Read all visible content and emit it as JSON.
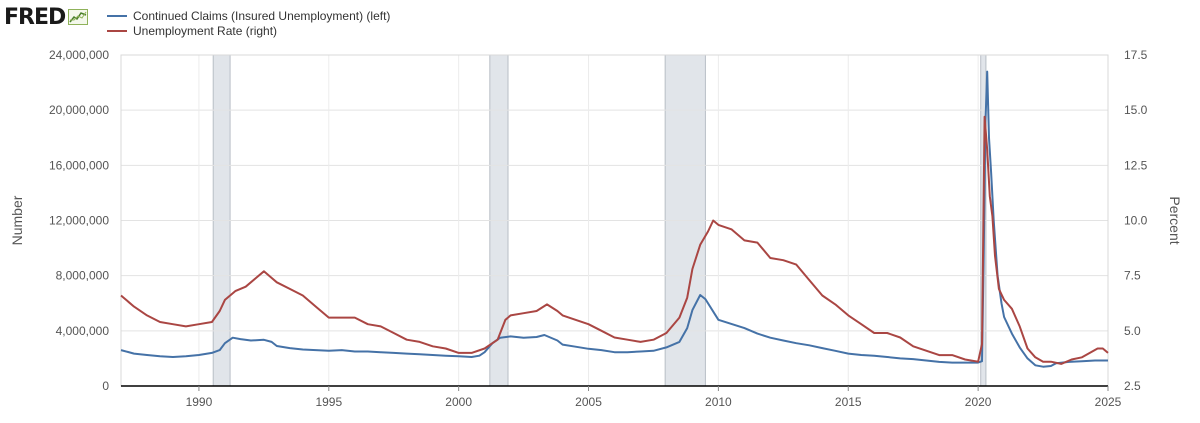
{
  "branding": {
    "logo_text": "FRED"
  },
  "chart_data": {
    "type": "line",
    "title": "",
    "xlabel": "",
    "y_left_label": "Number",
    "y_right_label": "Percent",
    "x_range": [
      1987.0,
      2025.0
    ],
    "y_left_range": [
      0,
      24000000
    ],
    "y_right_range": [
      2.5,
      17.5
    ],
    "x_ticks": [
      {
        "value": 1990,
        "label": "1990"
      },
      {
        "value": 1995,
        "label": "1995"
      },
      {
        "value": 2000,
        "label": "2000"
      },
      {
        "value": 2005,
        "label": "2005"
      },
      {
        "value": 2010,
        "label": "2010"
      },
      {
        "value": 2015,
        "label": "2015"
      },
      {
        "value": 2020,
        "label": "2020"
      },
      {
        "value": 2025,
        "label": "2025"
      }
    ],
    "y_left_ticks": [
      {
        "value": 0,
        "label": "0"
      },
      {
        "value": 4000000,
        "label": "4,000,000"
      },
      {
        "value": 8000000,
        "label": "8,000,000"
      },
      {
        "value": 12000000,
        "label": "12,000,000"
      },
      {
        "value": 16000000,
        "label": "16,000,000"
      },
      {
        "value": 20000000,
        "label": "20,000,000"
      },
      {
        "value": 24000000,
        "label": "24,000,000"
      }
    ],
    "y_right_ticks": [
      {
        "value": 2.5,
        "label": "2.5"
      },
      {
        "value": 5.0,
        "label": "5.0"
      },
      {
        "value": 7.5,
        "label": "7.5"
      },
      {
        "value": 10.0,
        "label": "10.0"
      },
      {
        "value": 12.5,
        "label": "12.5"
      },
      {
        "value": 15.0,
        "label": "15.0"
      },
      {
        "value": 17.5,
        "label": "17.5"
      }
    ],
    "recessions": [
      {
        "start": 1990.55,
        "end": 1991.2
      },
      {
        "start": 2001.2,
        "end": 2001.9
      },
      {
        "start": 2007.95,
        "end": 2009.5
      },
      {
        "start": 2020.1,
        "end": 2020.3
      }
    ],
    "grid": true,
    "legend_position": "top-left",
    "series": [
      {
        "name": "Continued Claims (Insured Unemployment) (left)",
        "axis": "left",
        "color": "#4572a7",
        "points": [
          [
            1987.0,
            2600000
          ],
          [
            1987.5,
            2350000
          ],
          [
            1988.0,
            2250000
          ],
          [
            1988.5,
            2150000
          ],
          [
            1989.0,
            2100000
          ],
          [
            1989.5,
            2150000
          ],
          [
            1990.0,
            2250000
          ],
          [
            1990.5,
            2400000
          ],
          [
            1990.8,
            2600000
          ],
          [
            1991.0,
            3100000
          ],
          [
            1991.3,
            3500000
          ],
          [
            1991.6,
            3400000
          ],
          [
            1992.0,
            3300000
          ],
          [
            1992.5,
            3350000
          ],
          [
            1992.8,
            3200000
          ],
          [
            1993.0,
            2900000
          ],
          [
            1993.5,
            2750000
          ],
          [
            1994.0,
            2650000
          ],
          [
            1994.5,
            2600000
          ],
          [
            1995.0,
            2550000
          ],
          [
            1995.5,
            2600000
          ],
          [
            1996.0,
            2500000
          ],
          [
            1996.5,
            2500000
          ],
          [
            1997.0,
            2450000
          ],
          [
            1997.5,
            2400000
          ],
          [
            1998.0,
            2350000
          ],
          [
            1998.5,
            2300000
          ],
          [
            1999.0,
            2250000
          ],
          [
            1999.5,
            2200000
          ],
          [
            2000.0,
            2150000
          ],
          [
            2000.5,
            2100000
          ],
          [
            2000.8,
            2200000
          ],
          [
            2001.0,
            2450000
          ],
          [
            2001.3,
            3100000
          ],
          [
            2001.6,
            3500000
          ],
          [
            2002.0,
            3600000
          ],
          [
            2002.5,
            3500000
          ],
          [
            2003.0,
            3550000
          ],
          [
            2003.3,
            3700000
          ],
          [
            2003.8,
            3300000
          ],
          [
            2004.0,
            3000000
          ],
          [
            2004.5,
            2850000
          ],
          [
            2005.0,
            2700000
          ],
          [
            2005.5,
            2600000
          ],
          [
            2006.0,
            2450000
          ],
          [
            2006.5,
            2450000
          ],
          [
            2007.0,
            2500000
          ],
          [
            2007.5,
            2550000
          ],
          [
            2008.0,
            2800000
          ],
          [
            2008.5,
            3200000
          ],
          [
            2008.8,
            4200000
          ],
          [
            2009.0,
            5500000
          ],
          [
            2009.3,
            6600000
          ],
          [
            2009.5,
            6300000
          ],
          [
            2010.0,
            4800000
          ],
          [
            2010.5,
            4500000
          ],
          [
            2011.0,
            4200000
          ],
          [
            2011.5,
            3800000
          ],
          [
            2012.0,
            3500000
          ],
          [
            2012.5,
            3300000
          ],
          [
            2013.0,
            3100000
          ],
          [
            2013.5,
            2950000
          ],
          [
            2014.0,
            2750000
          ],
          [
            2014.5,
            2550000
          ],
          [
            2015.0,
            2350000
          ],
          [
            2015.5,
            2250000
          ],
          [
            2016.0,
            2200000
          ],
          [
            2016.5,
            2100000
          ],
          [
            2017.0,
            2000000
          ],
          [
            2017.5,
            1950000
          ],
          [
            2018.0,
            1850000
          ],
          [
            2018.5,
            1750000
          ],
          [
            2019.0,
            1700000
          ],
          [
            2019.5,
            1700000
          ],
          [
            2020.0,
            1700000
          ],
          [
            2020.15,
            1800000
          ],
          [
            2020.22,
            10000000
          ],
          [
            2020.28,
            19000000
          ],
          [
            2020.35,
            22800000
          ],
          [
            2020.42,
            18000000
          ],
          [
            2020.5,
            15500000
          ],
          [
            2020.6,
            12000000
          ],
          [
            2020.75,
            8000000
          ],
          [
            2020.9,
            6000000
          ],
          [
            2021.0,
            5000000
          ],
          [
            2021.3,
            3800000
          ],
          [
            2021.6,
            2800000
          ],
          [
            2021.9,
            2000000
          ],
          [
            2022.2,
            1500000
          ],
          [
            2022.5,
            1400000
          ],
          [
            2022.8,
            1450000
          ],
          [
            2023.0,
            1650000
          ],
          [
            2023.5,
            1750000
          ],
          [
            2024.0,
            1800000
          ],
          [
            2024.5,
            1850000
          ],
          [
            2025.0,
            1850000
          ]
        ]
      },
      {
        "name": "Unemployment Rate (right)",
        "axis": "right",
        "color": "#aa4643",
        "points": [
          [
            1987.0,
            6.6
          ],
          [
            1987.5,
            6.1
          ],
          [
            1988.0,
            5.7
          ],
          [
            1988.5,
            5.4
          ],
          [
            1989.0,
            5.3
          ],
          [
            1989.5,
            5.2
          ],
          [
            1990.0,
            5.3
          ],
          [
            1990.5,
            5.4
          ],
          [
            1990.8,
            5.9
          ],
          [
            1991.0,
            6.4
          ],
          [
            1991.4,
            6.8
          ],
          [
            1991.8,
            7.0
          ],
          [
            1992.2,
            7.4
          ],
          [
            1992.5,
            7.7
          ],
          [
            1992.8,
            7.4
          ],
          [
            1993.0,
            7.2
          ],
          [
            1993.5,
            6.9
          ],
          [
            1994.0,
            6.6
          ],
          [
            1994.5,
            6.1
          ],
          [
            1995.0,
            5.6
          ],
          [
            1995.5,
            5.6
          ],
          [
            1996.0,
            5.6
          ],
          [
            1996.5,
            5.3
          ],
          [
            1997.0,
            5.2
          ],
          [
            1997.5,
            4.9
          ],
          [
            1998.0,
            4.6
          ],
          [
            1998.5,
            4.5
          ],
          [
            1999.0,
            4.3
          ],
          [
            1999.5,
            4.2
          ],
          [
            2000.0,
            4.0
          ],
          [
            2000.5,
            4.0
          ],
          [
            2001.0,
            4.2
          ],
          [
            2001.5,
            4.6
          ],
          [
            2001.8,
            5.5
          ],
          [
            2002.0,
            5.7
          ],
          [
            2002.5,
            5.8
          ],
          [
            2003.0,
            5.9
          ],
          [
            2003.4,
            6.2
          ],
          [
            2003.8,
            5.9
          ],
          [
            2004.0,
            5.7
          ],
          [
            2004.5,
            5.5
          ],
          [
            2005.0,
            5.3
          ],
          [
            2005.5,
            5.0
          ],
          [
            2006.0,
            4.7
          ],
          [
            2006.5,
            4.6
          ],
          [
            2007.0,
            4.5
          ],
          [
            2007.5,
            4.6
          ],
          [
            2008.0,
            4.9
          ],
          [
            2008.5,
            5.6
          ],
          [
            2008.8,
            6.5
          ],
          [
            2009.0,
            7.8
          ],
          [
            2009.3,
            8.9
          ],
          [
            2009.6,
            9.5
          ],
          [
            2009.8,
            10.0
          ],
          [
            2010.0,
            9.8
          ],
          [
            2010.5,
            9.6
          ],
          [
            2011.0,
            9.1
          ],
          [
            2011.5,
            9.0
          ],
          [
            2012.0,
            8.3
          ],
          [
            2012.5,
            8.2
          ],
          [
            2013.0,
            8.0
          ],
          [
            2013.5,
            7.3
          ],
          [
            2014.0,
            6.6
          ],
          [
            2014.5,
            6.2
          ],
          [
            2015.0,
            5.7
          ],
          [
            2015.5,
            5.3
          ],
          [
            2016.0,
            4.9
          ],
          [
            2016.5,
            4.9
          ],
          [
            2017.0,
            4.7
          ],
          [
            2017.5,
            4.3
          ],
          [
            2018.0,
            4.1
          ],
          [
            2018.5,
            3.9
          ],
          [
            2019.0,
            3.9
          ],
          [
            2019.5,
            3.7
          ],
          [
            2020.0,
            3.6
          ],
          [
            2020.15,
            4.4
          ],
          [
            2020.25,
            14.7
          ],
          [
            2020.35,
            13.2
          ],
          [
            2020.45,
            11.1
          ],
          [
            2020.55,
            10.2
          ],
          [
            2020.65,
            8.4
          ],
          [
            2020.8,
            6.9
          ],
          [
            2021.0,
            6.4
          ],
          [
            2021.3,
            6.0
          ],
          [
            2021.6,
            5.2
          ],
          [
            2021.9,
            4.2
          ],
          [
            2022.2,
            3.8
          ],
          [
            2022.5,
            3.6
          ],
          [
            2022.8,
            3.6
          ],
          [
            2023.2,
            3.5
          ],
          [
            2023.6,
            3.7
          ],
          [
            2024.0,
            3.8
          ],
          [
            2024.3,
            4.0
          ],
          [
            2024.6,
            4.2
          ],
          [
            2024.8,
            4.2
          ],
          [
            2025.0,
            4.0
          ]
        ]
      }
    ]
  }
}
